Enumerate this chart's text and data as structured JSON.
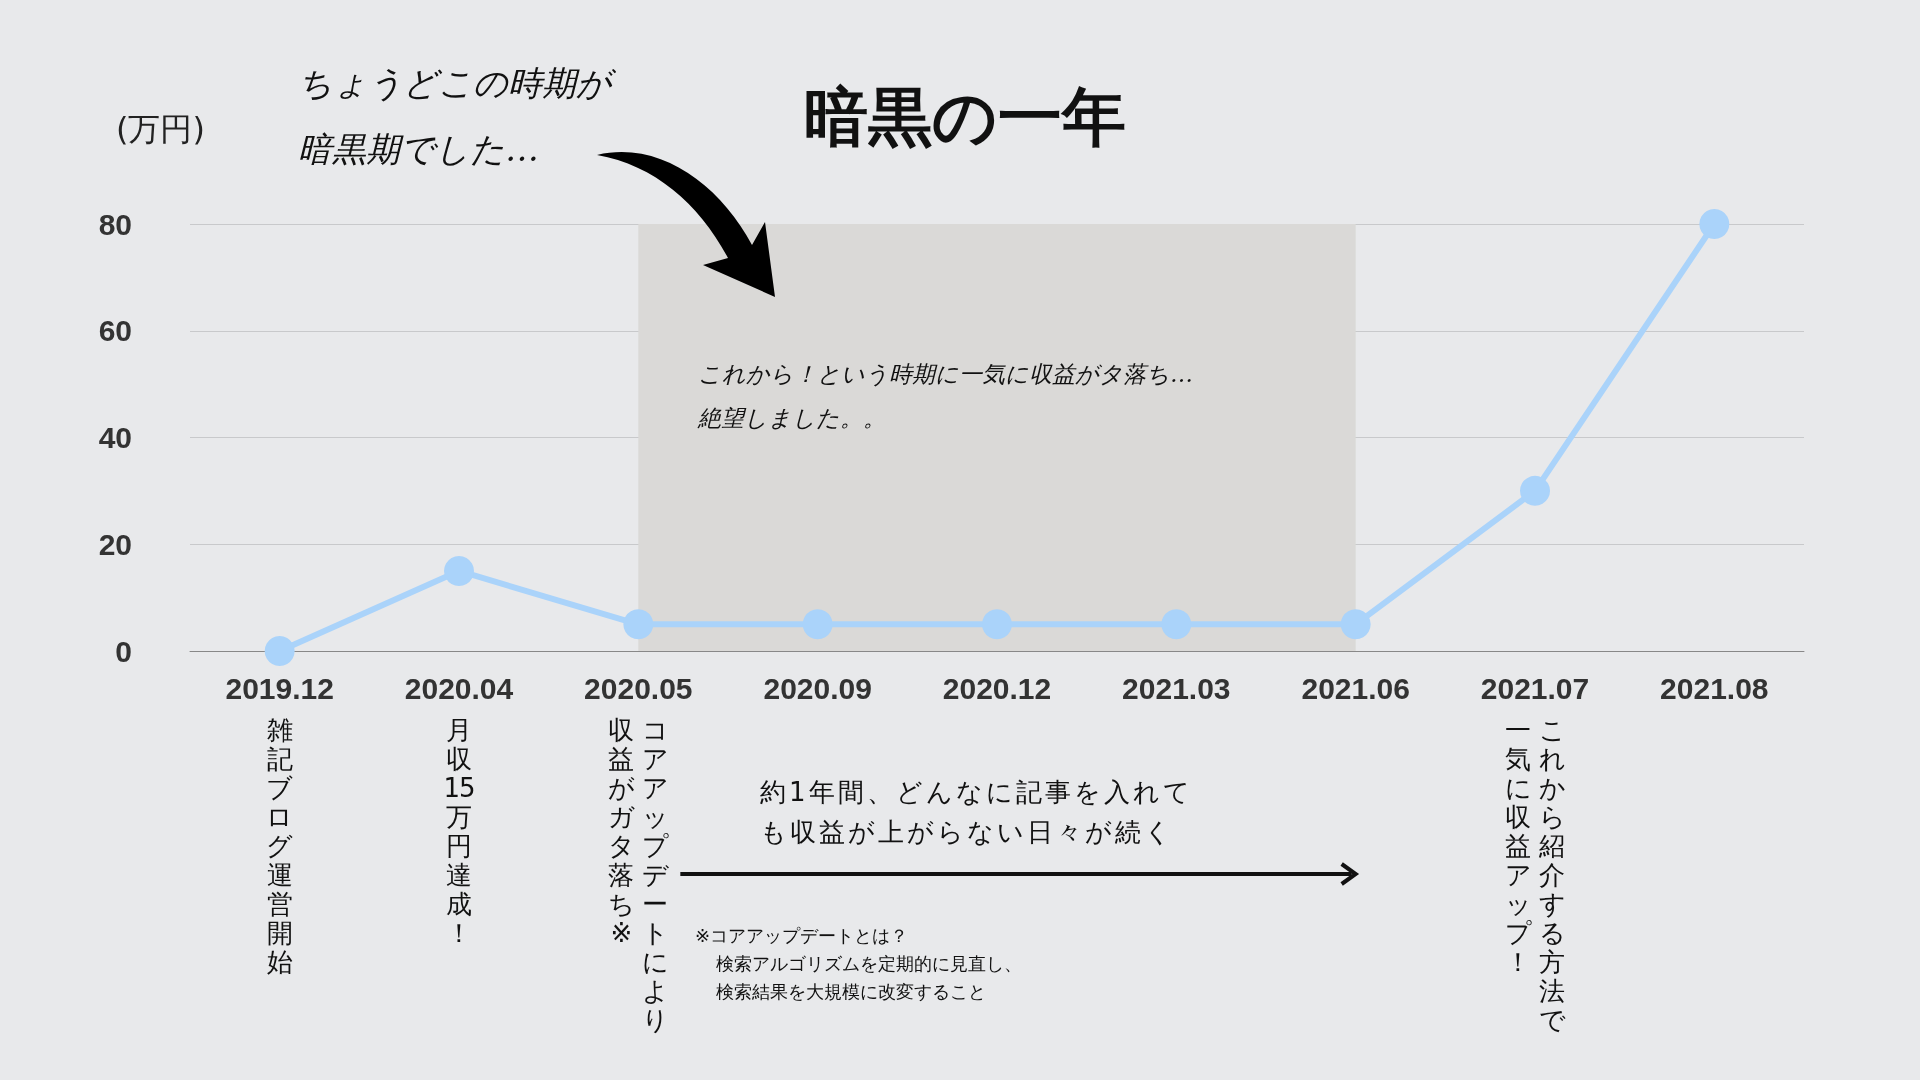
{
  "chart_data": {
    "type": "line",
    "title": "暗黒の一年",
    "ylabel": "(万円)",
    "categories": [
      "2019.12",
      "2020.04",
      "2020.05",
      "2020.09",
      "2020.12",
      "2021.03",
      "2021.06",
      "2021.07",
      "2021.08"
    ],
    "series": [
      {
        "color": "#aad3fa",
        "values": [
          0,
          15,
          5,
          5,
          5,
          5,
          5,
          30,
          80
        ]
      }
    ],
    "ylim": [
      0,
      80
    ],
    "yticks": [
      0,
      20,
      40,
      60,
      80
    ],
    "grid": "y",
    "marker": "circle",
    "line_style": "solid",
    "bands": [
      {
        "axis": "x",
        "from": "2020.05",
        "to": "2021.06",
        "color": "#dad9d7"
      }
    ],
    "annotations": [
      "雑記ブログ運営開始",
      "月収15万円達成！",
      "コアアップデートにより",
      "収益がガタ落ち※",
      "これから紹介する方法で",
      "一気に収益アップ！",
      "約1年間、どんなに記事を入れても収益が上がらない日々が続く",
      "※コアアップデートとは？",
      "検索アルゴリズムを定期的に見直し、検索結果を大規模に改変すること",
      "ちょうどこの時期が暗黒期でした…",
      "これから！という時期に一気に収益がタ落ち…絶望しました。。"
    ]
  }
}
